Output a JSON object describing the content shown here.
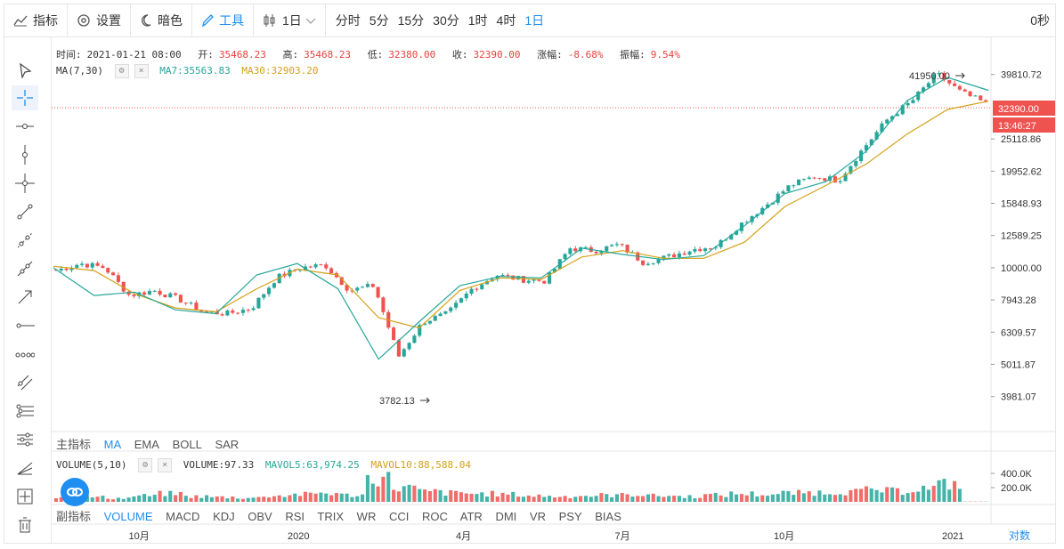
{
  "toolbar": {
    "indicator_label": "指标",
    "settings_label": "设置",
    "dark_label": "暗色",
    "tools_label": "工具",
    "interval_label": "1日",
    "periods": [
      "分时",
      "5分",
      "15分",
      "30分",
      "1时",
      "4时",
      "1日"
    ],
    "active_period": "1日",
    "countdown": "0秒"
  },
  "info": {
    "time_label": "时间:",
    "time": "2021-01-21 08:00",
    "open_label": "开:",
    "open": "35468.23",
    "high_label": "高:",
    "high": "35468.23",
    "low_label": "低:",
    "low": "32380.00",
    "close_label": "收:",
    "close": "32390.00",
    "change_label": "涨幅:",
    "change": "-8.68%",
    "amp_label": "振幅:",
    "amp": "9.54%"
  },
  "ma": {
    "label": "MA(7,30)",
    "ma7": "MA7:35563.83",
    "ma30": "MA30:32903.20"
  },
  "main_tabs": {
    "label": "主指标",
    "items": [
      "MA",
      "EMA",
      "BOLL",
      "SAR"
    ],
    "active": "MA"
  },
  "volume": {
    "label": "VOLUME(5,10)",
    "value": "VOLUME:97.33",
    "mavol5": "MAVOL5:63,974.25",
    "mavol10": "MAVOL10:88,588.04"
  },
  "sub_tabs": {
    "label": "副指标",
    "items": [
      "VOLUME",
      "MACD",
      "KDJ",
      "OBV",
      "RSI",
      "TRIX",
      "WR",
      "CCI",
      "ROC",
      "ATR",
      "DMI",
      "VR",
      "PSY",
      "BIAS"
    ],
    "active": "VOLUME"
  },
  "scale_toggle": "对数",
  "colors": {
    "up": "#26a69a",
    "down": "#ef5350",
    "ma7": "#26a69a",
    "ma30": "#d4a017",
    "accent": "#1f8ef1",
    "price_tag": "#ef5350"
  },
  "chart_data": [
    {
      "type": "candlestick",
      "title": "",
      "yscale": "log",
      "y_ticks": [
        "39810.72",
        "25118.86",
        "19952.62",
        "15848.93",
        "12589.25",
        "10000.00",
        "7943.28",
        "6309.57",
        "5011.87",
        "3981.07"
      ],
      "x_ticks": [
        "10月",
        "2020",
        "4月",
        "7月",
        "10月",
        "2021"
      ],
      "current_price": "32390.00",
      "countdown_tag": "13:46:27",
      "max_label": "41950.00",
      "min_label": "3782.13",
      "series": [
        {
          "name": "MA7",
          "values": [
            10000,
            8200,
            8400,
            7400,
            7200,
            9500,
            10300,
            8600,
            5200,
            6800,
            8800,
            9400,
            9300,
            11500,
            11000,
            10600,
            10900,
            13500,
            17000,
            18500,
            23000,
            33000,
            39000,
            35563.83
          ]
        },
        {
          "name": "MA30",
          "values": [
            10100,
            9800,
            8300,
            7500,
            7300,
            8600,
            9900,
            9500,
            7000,
            6500,
            8500,
            9300,
            9200,
            10800,
            11300,
            10700,
            10700,
            12000,
            15500,
            18000,
            21000,
            26000,
            31000,
            32903.2
          ]
        }
      ],
      "close_path": [
        9800,
        10300,
        10000,
        8200,
        8500,
        8000,
        7300,
        7200,
        7500,
        9300,
        10000,
        10200,
        8500,
        8800,
        5300,
        6800,
        7200,
        8600,
        9500,
        9200,
        9100,
        11500,
        11300,
        11800,
        10400,
        10800,
        11400,
        11700,
        13700,
        15600,
        18000,
        19200,
        18700,
        23500,
        29000,
        33000,
        40000,
        35000,
        32390
      ]
    },
    {
      "type": "bar",
      "title": "",
      "y_ticks": [
        "400.0K",
        "200.0K"
      ],
      "series": [
        {
          "name": "VOLUME",
          "values": [
            60000,
            70000,
            55000,
            90000,
            120000,
            80000,
            70000,
            60000,
            90000,
            110000,
            130000,
            100000,
            350000,
            210000,
            150000,
            130000,
            120000,
            110000,
            90000,
            80000,
            90000,
            100000,
            110000,
            90000,
            80000,
            100000,
            120000,
            110000,
            130000,
            140000,
            150000,
            170000,
            160000,
            200000,
            260000,
            97.33
          ]
        }
      ]
    }
  ]
}
